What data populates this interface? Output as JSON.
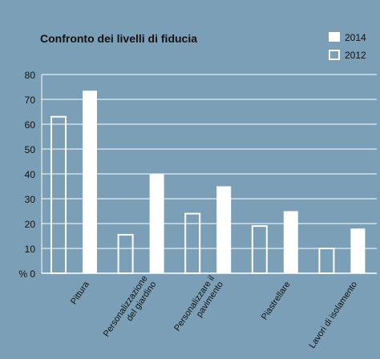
{
  "chart_data": {
    "type": "bar",
    "title": "Confronto dei livelli di fiducia",
    "categories": [
      "Pittura",
      "Personalizzazione del giardino",
      "Personalizzare il pavimento",
      "Piastrellare",
      "Lavori di isolamento"
    ],
    "category_lines": [
      [
        "Pittura"
      ],
      [
        "Personalizzazione",
        "del giardino"
      ],
      [
        "Personalizzare il",
        "pavimento"
      ],
      [
        "Piastrellare"
      ],
      [
        "Lavori di isolamento"
      ]
    ],
    "series": [
      {
        "name": "2012",
        "style": "outline",
        "values": [
          63,
          15.5,
          24,
          19,
          10
        ]
      },
      {
        "name": "2014",
        "style": "filled",
        "values": [
          73.5,
          40,
          35,
          25,
          18
        ]
      }
    ],
    "ylim": [
      0,
      80
    ],
    "yticks": [
      "% 0",
      "10",
      "20",
      "30",
      "40",
      "50",
      "60",
      "70",
      "80"
    ],
    "legend": {
      "position": "top-right",
      "order": [
        "2014",
        "2012"
      ]
    },
    "grid": true,
    "colors": {
      "background": "#7a9fb6",
      "bar": "#ffffff",
      "grid": "#ffffff",
      "text": "#111111"
    }
  }
}
